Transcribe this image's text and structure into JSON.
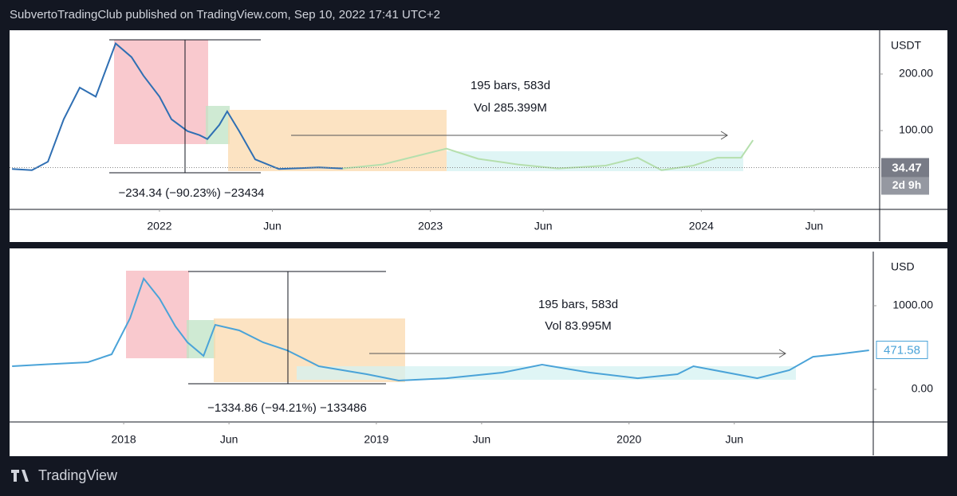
{
  "header": "SubvertoTradingClub published on TradingView.com, Sep 10, 2022 17:41 UTC+2",
  "footer": "TradingView",
  "chart_data": [
    {
      "type": "line",
      "currency": "USDT",
      "xlim": [
        -6.64,
        31.9
      ],
      "xticks": [
        {
          "value": 0,
          "label": "2022"
        },
        {
          "value": 5,
          "label": "Jun"
        },
        {
          "value": 12,
          "label": "2023"
        },
        {
          "value": 17,
          "label": "Jun"
        },
        {
          "value": 24,
          "label": "2024"
        },
        {
          "value": 29,
          "label": "Jun"
        }
      ],
      "ylim": [
        -39.4,
        274.6
      ],
      "yticks": [
        {
          "value": 200,
          "label": "200.00"
        },
        {
          "value": 100,
          "label": "100.00"
        }
      ],
      "last_price": 34.47,
      "countdown": "2d 9h",
      "annotations": [
        "195 bars, 583d",
        "Vol 285.399M",
        "−234.34 (−90.23%) −23434"
      ],
      "series": [
        {
          "color": "#2f6fb3",
          "x": [
            -6.53,
            -5.65,
            -4.94,
            -4.24,
            -3.53,
            -2.82,
            -1.94,
            -1.24,
            -0.71,
            0,
            0.53,
            1.24,
            1.77,
            2.12,
            2.65,
            3.0,
            3.53,
            4.24,
            5.29,
            7.06,
            8.12
          ],
          "values": [
            32,
            30,
            45,
            120,
            176,
            160,
            254,
            230,
            197,
            160,
            120,
            99,
            92,
            85,
            110,
            134,
            99,
            49,
            32,
            35,
            33
          ]
        },
        {
          "color": "#b5dfad",
          "x": [
            8.12,
            9.88,
            12.71,
            14.12,
            15.88,
            17.65,
            19.77,
            21.18,
            22.24,
            23.65,
            24.71,
            25.76,
            26.29
          ],
          "values": [
            33,
            40,
            68,
            50,
            40,
            33,
            38,
            52,
            30,
            38,
            52,
            52,
            83
          ]
        }
      ]
    },
    {
      "type": "line",
      "currency": "USD",
      "xlim": [
        -5.42,
        35.6
      ],
      "xticks": [
        {
          "value": 0,
          "label": "2018"
        },
        {
          "value": 5,
          "label": "Jun"
        },
        {
          "value": 12,
          "label": "2019"
        },
        {
          "value": 17,
          "label": "Jun"
        },
        {
          "value": 24,
          "label": "2020"
        },
        {
          "value": 29,
          "label": "Jun"
        }
      ],
      "ylim": [
        -390,
        1628
      ],
      "yticks": [
        {
          "value": 1000,
          "label": "1000.00"
        },
        {
          "value": 0,
          "label": "0.00"
        }
      ],
      "last_price": 471.58,
      "annotations": [
        "195 bars, 583d",
        "Vol 83.995M",
        "−1334.86 (−94.21%) −133486"
      ],
      "series": [
        {
          "color": "#4aa3d8",
          "x": [
            -5.3,
            -3.6,
            -1.7,
            -0.57,
            0.3,
            0.95,
            1.7,
            2.46,
            3.03,
            3.79,
            4.35,
            5.49,
            6.62,
            7.76,
            9.27,
            11.54,
            13.06,
            15.33,
            17.98,
            19.87,
            22.14,
            24.41,
            26.3,
            27.06,
            30.09,
            31.61,
            32.74,
            33.88,
            35.4
          ],
          "values": [
            276,
            300,
            324,
            419,
            848,
            1324,
            1086,
            752,
            562,
            400,
            771,
            705,
            562,
            467,
            276,
            181,
            105,
            133,
            200,
            295,
            200,
            133,
            181,
            276,
            133,
            229,
            390,
            419,
            467
          ]
        }
      ]
    }
  ]
}
